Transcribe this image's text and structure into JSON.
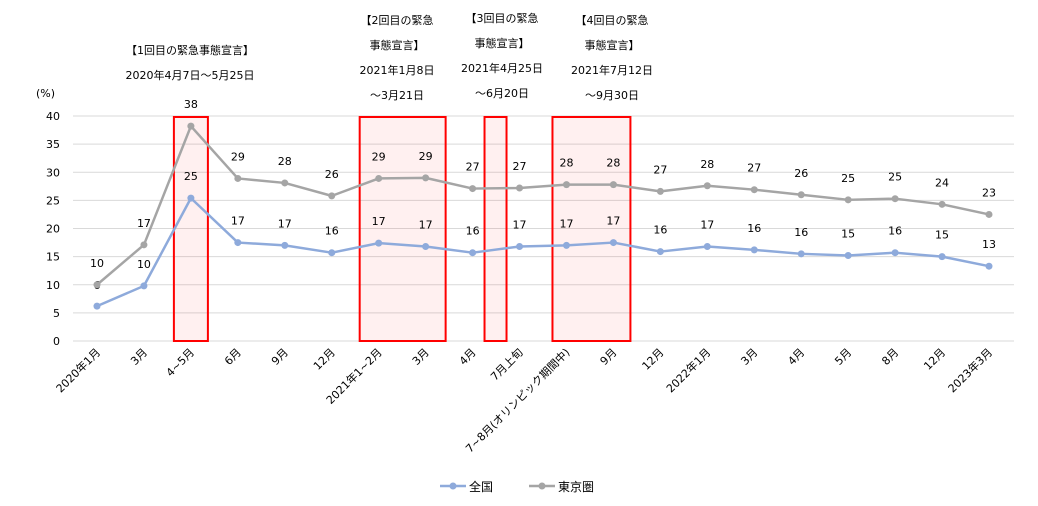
{
  "chart_data": {
    "type": "line",
    "y_unit_label": "(%)",
    "ylim": [
      0,
      40
    ],
    "y_ticks": [
      0,
      5,
      10,
      15,
      20,
      25,
      30,
      35,
      40
    ],
    "grid": "horizontal",
    "legend_position": "bottom",
    "categories": [
      "2020年1月",
      "3月",
      "4~5月",
      "6月",
      "9月",
      "12月",
      "2021年1~2月",
      "3月",
      "4月",
      "7月上旬",
      "7~8月(オリンピック期間中)",
      "9月",
      "12月",
      "2022年1月",
      "3月",
      "4月",
      "5月",
      "8月",
      "12月",
      "2023年3月"
    ],
    "series": [
      {
        "name": "全国",
        "color": "#8eaadb",
        "values": [
          6.2,
          9.8,
          25.4,
          17.5,
          17.0,
          15.7,
          17.4,
          16.8,
          15.7,
          16.8,
          17.0,
          17.5,
          15.9,
          16.8,
          16.2,
          15.5,
          15.2,
          15.7,
          15.0,
          13.3
        ],
        "labels": [
          "6",
          "10",
          "25",
          "17",
          "17",
          "16",
          "17",
          "17",
          "16",
          "17",
          "17",
          "17",
          "16",
          "17",
          "16",
          "16",
          "15",
          "16",
          "15",
          "13"
        ]
      },
      {
        "name": "東京圏",
        "color": "#a5a5a5",
        "values": [
          10.0,
          17.1,
          38.2,
          28.9,
          28.1,
          25.8,
          28.9,
          29.0,
          27.1,
          27.2,
          27.8,
          27.8,
          26.6,
          27.6,
          26.9,
          26.0,
          25.1,
          25.3,
          24.3,
          22.5
        ],
        "labels": [
          "10",
          "17",
          "38",
          "29",
          "28",
          "26",
          "29",
          "29",
          "27",
          "27",
          "28",
          "28",
          "27",
          "28",
          "27",
          "26",
          "25",
          "25",
          "24",
          "23"
        ]
      }
    ],
    "annotations": [
      {
        "lines": [
          "【1回目の緊急事態宣言】",
          "2020年4月7日～5月25日"
        ],
        "span": [
          2,
          2
        ]
      },
      {
        "lines": [
          "【2回目の緊急",
          "事態宣言】",
          "2021年1月8日",
          "～3月21日"
        ],
        "span": [
          6,
          7
        ]
      },
      {
        "lines": [
          "【3回目の緊急",
          "事態宣言】",
          "2021年4月25日",
          "～6月20日"
        ],
        "span": [
          9,
          9
        ]
      },
      {
        "lines": [
          "【4回目の緊急",
          "事態宣言】",
          "2021年7月12日",
          "～9月30日"
        ],
        "span": [
          10,
          11
        ]
      }
    ],
    "highlight_color": "#ff0000"
  }
}
